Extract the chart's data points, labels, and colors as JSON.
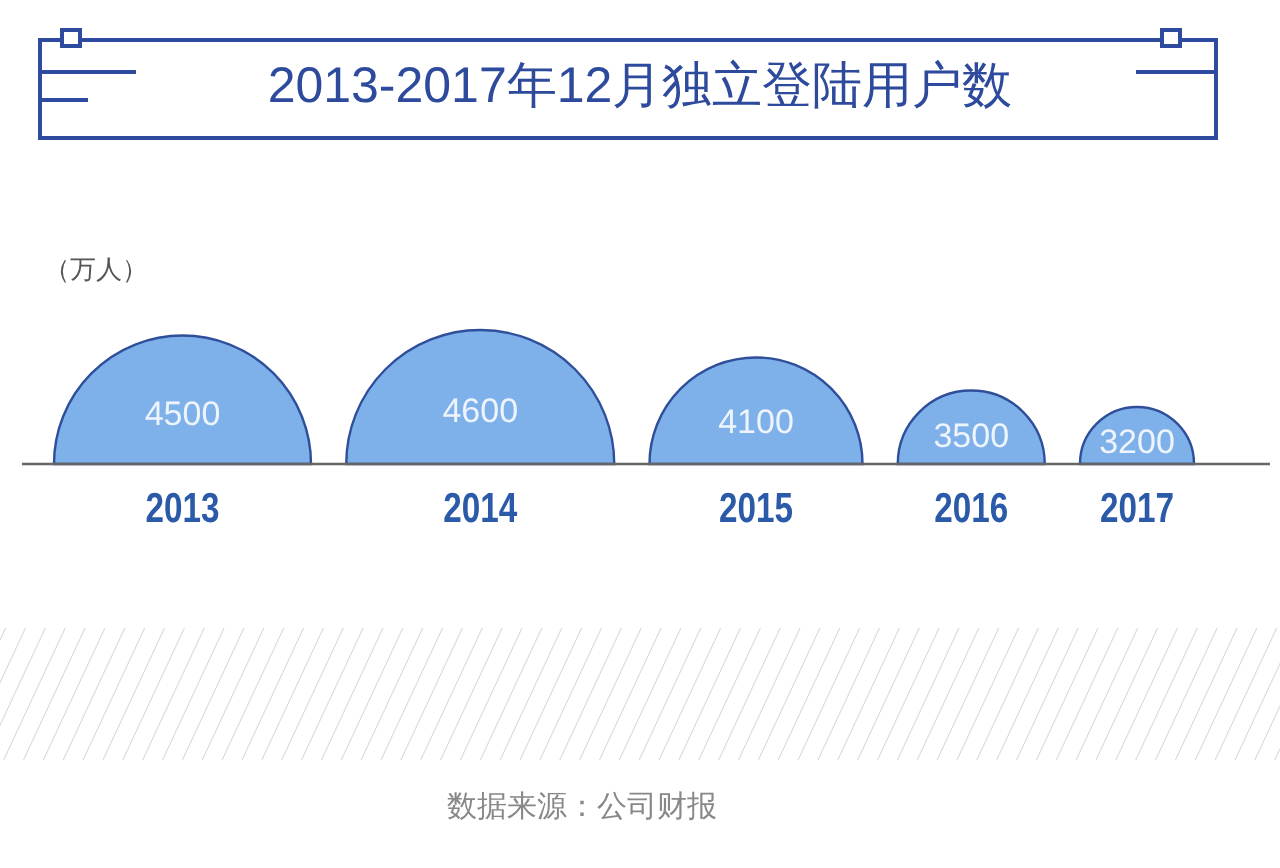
{
  "chart_data": {
    "type": "other",
    "title": "2013-2017年12月独立登陆用户数",
    "ylabel": "（万人）",
    "categories": [
      "2013",
      "2014",
      "2015",
      "2016",
      "2017"
    ],
    "values": [
      4500,
      4600,
      4100,
      3500,
      3200
    ],
    "data_labels": true,
    "color": "#7eb0ea",
    "annotations": [
      "数据来源：公司财报"
    ]
  }
}
